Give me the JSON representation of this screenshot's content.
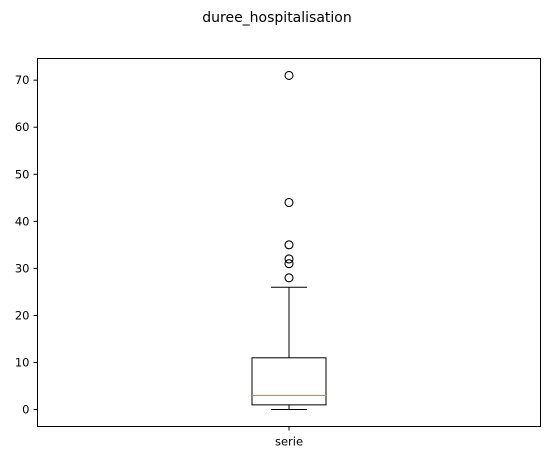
{
  "chart_data": {
    "type": "boxplot",
    "title": "duree_hospitalisation",
    "xlabel": "",
    "ylabel": "",
    "categories": [
      "serie"
    ],
    "ylim": [
      -3.6,
      74.6
    ],
    "yticks": [
      0,
      10,
      20,
      30,
      40,
      50,
      60,
      70
    ],
    "ytick_labels": [
      "0",
      "10",
      "20",
      "30",
      "40",
      "50",
      "60",
      "70"
    ],
    "grid": false,
    "boxes": [
      {
        "category": "serie",
        "whisker_low": 0,
        "q1": 1,
        "median": 3,
        "q3": 11,
        "whisker_high": 26,
        "outliers": [
          28,
          31,
          32,
          35,
          44,
          71
        ]
      }
    ],
    "colors": {
      "box": "#000000",
      "median": "#ff7f0e",
      "outlier_edge": "#000000"
    }
  }
}
